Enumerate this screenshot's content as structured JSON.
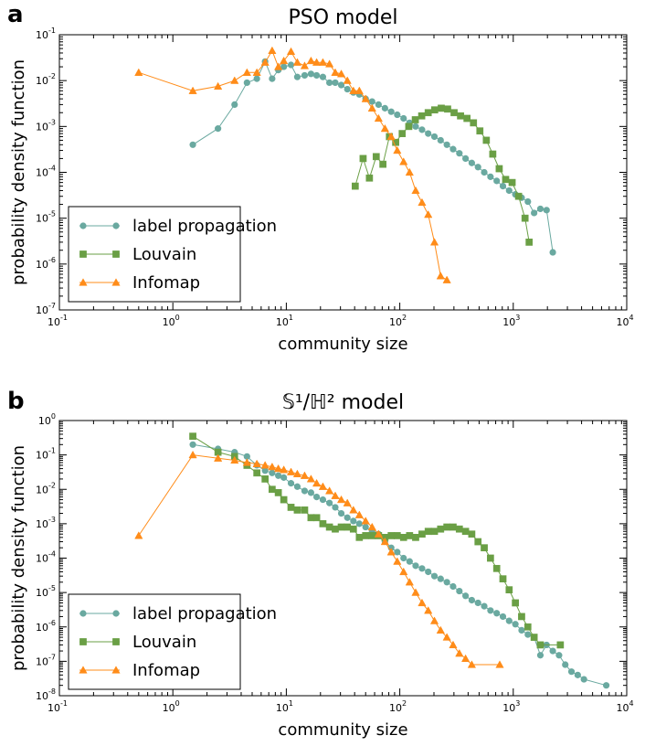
{
  "chart_data": [
    {
      "type": "line",
      "panel_label": "a",
      "title": "PSO model",
      "xlabel": "community size",
      "ylabel": "probability density function",
      "xscale": "log",
      "yscale": "log",
      "xlim": [
        0.1,
        10000
      ],
      "ylim": [
        1e-07,
        0.1
      ],
      "x_tick_labels": [
        [
          "10",
          "-1"
        ],
        [
          "10",
          "0"
        ],
        [
          "10",
          "1"
        ],
        [
          "10",
          "2"
        ],
        [
          "10",
          "3"
        ],
        [
          "10",
          "4"
        ]
      ],
      "y_tick_labels": [
        [
          "10",
          "-7"
        ],
        [
          "10",
          "-6"
        ],
        [
          "10",
          "-5"
        ],
        [
          "10",
          "-4"
        ],
        [
          "10",
          "-3"
        ],
        [
          "10",
          "-2"
        ],
        [
          "10",
          "-1"
        ]
      ],
      "legend_position": "bottom-left",
      "series": [
        {
          "name": "label propagation",
          "color": "#6aa9a0",
          "marker": "circle",
          "x": [
            1.5,
            2.5,
            3.5,
            4.5,
            5.5,
            6.5,
            7.5,
            8.5,
            9.5,
            11,
            12.5,
            14.5,
            16.5,
            18.5,
            21,
            24,
            27,
            30.5,
            34.5,
            39,
            44,
            50,
            57,
            65,
            74,
            84,
            95,
            108,
            122,
            138,
            157,
            178,
            202,
            229,
            260,
            295,
            335,
            380,
            431,
            489,
            555,
            630,
            715,
            811,
            920,
            1044,
            1185,
            1345,
            1527,
            1733,
            1966,
            2231
          ],
          "y": [
            0.0004,
            0.0009,
            0.003,
            0.009,
            0.011,
            0.026,
            0.011,
            0.017,
            0.02,
            0.022,
            0.012,
            0.013,
            0.014,
            0.013,
            0.012,
            0.009,
            0.009,
            0.008,
            0.0065,
            0.0055,
            0.005,
            0.004,
            0.0035,
            0.003,
            0.0025,
            0.0021,
            0.0018,
            0.0015,
            0.0012,
            0.001,
            0.00085,
            0.0007,
            0.0006,
            0.0005,
            0.0004,
            0.00032,
            0.00026,
            0.0002,
            0.00016,
            0.00013,
            0.0001,
            8e-05,
            6.5e-05,
            5e-05,
            4e-05,
            3.3e-05,
            2.8e-05,
            2.3e-05,
            1.3e-05,
            1.6e-05,
            1.5e-05,
            1.8e-06
          ]
        },
        {
          "name": "Louvain",
          "color": "#6a9f45",
          "marker": "square",
          "x": [
            40.5,
            47.5,
            54,
            62,
            71,
            81,
            92,
            105,
            120,
            137,
            156,
            178,
            203,
            232,
            264,
            301,
            343,
            391,
            446,
            508,
            579,
            660,
            752,
            857,
            977,
            1114,
            1270,
            1380
          ],
          "y": [
            5e-05,
            0.0002,
            7.5e-05,
            0.00022,
            0.00015,
            0.0006,
            0.00045,
            0.0007,
            0.001,
            0.0014,
            0.0017,
            0.002,
            0.0023,
            0.0025,
            0.0024,
            0.002,
            0.0017,
            0.0015,
            0.0012,
            0.0008,
            0.0005,
            0.00025,
            0.00012,
            7e-05,
            6e-05,
            3e-05,
            1e-05,
            3e-06
          ]
        },
        {
          "name": "Infomap",
          "color": "#ff8c19",
          "marker": "triangle",
          "x": [
            0.5,
            1.5,
            2.5,
            3.5,
            4.5,
            5.5,
            6.5,
            7.5,
            8.5,
            9.5,
            11,
            12.5,
            14.5,
            16.5,
            18.5,
            21,
            24,
            27,
            30.5,
            34.5,
            39,
            44,
            50,
            57,
            65,
            74,
            84,
            95,
            108,
            122,
            138,
            157,
            178,
            202,
            229,
            260
          ],
          "y": [
            0.015,
            0.006,
            0.0075,
            0.01,
            0.015,
            0.015,
            0.025,
            0.045,
            0.02,
            0.027,
            0.043,
            0.025,
            0.021,
            0.027,
            0.025,
            0.025,
            0.023,
            0.015,
            0.014,
            0.01,
            0.006,
            0.006,
            0.004,
            0.0025,
            0.0015,
            0.0009,
            0.0006,
            0.0003,
            0.00017,
            0.0001,
            4e-05,
            2.2e-05,
            1.2e-05,
            3e-06,
            5.5e-07,
            4.5e-07
          ]
        }
      ]
    },
    {
      "type": "line",
      "panel_label": "b",
      "title": "𝕊¹/ℍ² model",
      "xlabel": "community size",
      "ylabel": "probability density function",
      "xscale": "log",
      "yscale": "log",
      "xlim": [
        0.1,
        10000
      ],
      "ylim": [
        1e-08,
        1
      ],
      "x_tick_labels": [
        [
          "10",
          "-1"
        ],
        [
          "10",
          "0"
        ],
        [
          "10",
          "1"
        ],
        [
          "10",
          "2"
        ],
        [
          "10",
          "3"
        ],
        [
          "10",
          "4"
        ]
      ],
      "y_tick_labels": [
        [
          "10",
          "-8"
        ],
        [
          "10",
          "-7"
        ],
        [
          "10",
          "-6"
        ],
        [
          "10",
          "-5"
        ],
        [
          "10",
          "-4"
        ],
        [
          "10",
          "-3"
        ],
        [
          "10",
          "-2"
        ],
        [
          "10",
          "-1"
        ],
        [
          "10",
          "0"
        ]
      ],
      "legend_position": "bottom-left",
      "series": [
        {
          "name": "label propagation",
          "color": "#6aa9a0",
          "marker": "circle",
          "x": [
            1.5,
            2.5,
            3.5,
            4.5,
            5.5,
            6.5,
            7.5,
            8.5,
            9.5,
            11,
            12.5,
            14.5,
            16.5,
            18.5,
            21,
            24,
            27,
            30.5,
            34.5,
            39,
            44,
            50,
            57,
            65,
            74,
            84,
            95,
            108,
            122,
            138,
            157,
            178,
            202,
            229,
            260,
            295,
            335,
            380,
            431,
            489,
            555,
            630,
            715,
            811,
            920,
            1044,
            1185,
            1345,
            1527,
            1733,
            1966,
            2231,
            2532,
            2873,
            3260,
            3699,
            4197,
            6600
          ],
          "y": [
            0.2,
            0.15,
            0.12,
            0.09,
            0.05,
            0.035,
            0.03,
            0.025,
            0.022,
            0.015,
            0.012,
            0.009,
            0.008,
            0.006,
            0.005,
            0.004,
            0.003,
            0.002,
            0.0015,
            0.0012,
            0.001,
            0.0008,
            0.0006,
            0.0005,
            0.0003,
            0.0002,
            0.00015,
            0.0001,
            8e-05,
            6e-05,
            5e-05,
            4e-05,
            3e-05,
            2.5e-05,
            2e-05,
            1.5e-05,
            1.1e-05,
            8e-06,
            6e-06,
            5e-06,
            4e-06,
            3e-06,
            2.5e-06,
            2e-06,
            1.5e-06,
            1.2e-06,
            8e-07,
            6e-07,
            5e-07,
            1.5e-07,
            3e-07,
            2e-07,
            1.5e-07,
            8e-08,
            5e-08,
            4e-08,
            3e-08,
            2e-08
          ]
        },
        {
          "name": "Louvain",
          "color": "#6a9f45",
          "marker": "square",
          "x": [
            1.5,
            2.5,
            3.5,
            4.5,
            5.5,
            6.5,
            7.5,
            8.5,
            9.5,
            11,
            12.5,
            14.5,
            16.5,
            18.5,
            21,
            24,
            27,
            30.5,
            34.5,
            39,
            44,
            50,
            57,
            65,
            74,
            84,
            95,
            108,
            122,
            138,
            157,
            178,
            202,
            229,
            260,
            295,
            335,
            380,
            431,
            489,
            555,
            630,
            715,
            811,
            920,
            1044,
            1185,
            1345,
            1527,
            1733,
            2600
          ],
          "y": [
            0.35,
            0.12,
            0.09,
            0.05,
            0.03,
            0.02,
            0.01,
            0.008,
            0.005,
            0.003,
            0.0025,
            0.0025,
            0.0015,
            0.0015,
            0.001,
            0.0008,
            0.0007,
            0.0008,
            0.0008,
            0.0007,
            0.0004,
            0.00045,
            0.00045,
            0.00045,
            0.0004,
            0.00045,
            0.00045,
            0.0004,
            0.00045,
            0.0004,
            0.0005,
            0.0006,
            0.0006,
            0.0007,
            0.0008,
            0.0008,
            0.0007,
            0.0006,
            0.0005,
            0.0003,
            0.0002,
            0.0001,
            5e-05,
            2.5e-05,
            1.2e-05,
            5e-06,
            2e-06,
            1e-06,
            5e-07,
            3e-07,
            3e-07
          ]
        },
        {
          "name": "Infomap",
          "color": "#ff8c19",
          "marker": "triangle",
          "x": [
            0.5,
            1.5,
            2.5,
            3.5,
            4.5,
            5.5,
            6.5,
            7.5,
            8.5,
            9.5,
            11,
            12.5,
            14.5,
            16.5,
            18.5,
            21,
            24,
            27,
            30.5,
            34.5,
            39,
            44,
            50,
            57,
            65,
            74,
            84,
            95,
            108,
            122,
            138,
            157,
            178,
            202,
            229,
            260,
            295,
            335,
            380,
            431,
            760
          ],
          "y": [
            0.00045,
            0.1,
            0.08,
            0.07,
            0.06,
            0.055,
            0.05,
            0.045,
            0.04,
            0.037,
            0.032,
            0.028,
            0.025,
            0.02,
            0.015,
            0.012,
            0.009,
            0.0065,
            0.005,
            0.004,
            0.0025,
            0.0018,
            0.0012,
            0.0008,
            0.0005,
            0.0003,
            0.00015,
            8e-05,
            4e-05,
            2e-05,
            1e-05,
            5e-06,
            3e-06,
            1.5e-06,
            8e-07,
            5e-07,
            3e-07,
            1.7e-07,
            1.2e-07,
            8e-08,
            8e-08
          ]
        }
      ]
    }
  ]
}
